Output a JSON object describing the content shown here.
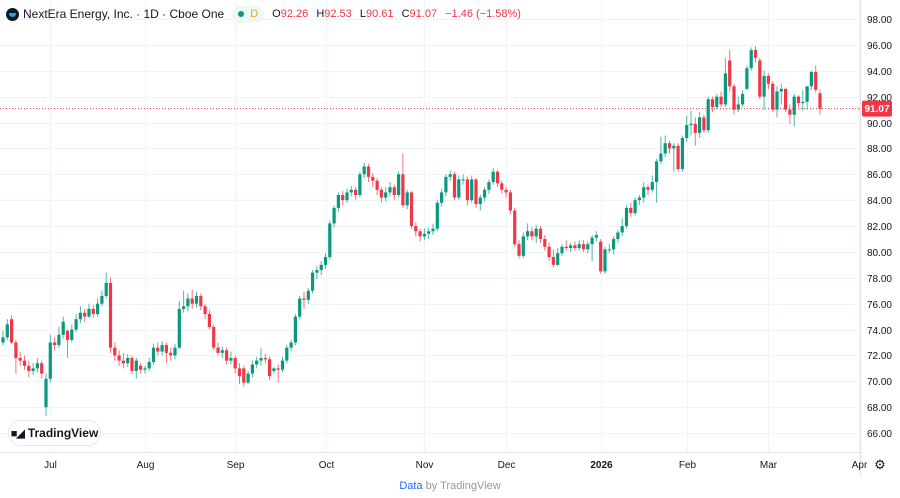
{
  "header": {
    "symbol_title": "NextEra Energy, Inc. · 1D · Cboe One",
    "market_status_letter": "D",
    "ohlc": {
      "o_label": "O",
      "o": "92.26",
      "h_label": "H",
      "h": "92.53",
      "l_label": "L",
      "l": "90.61",
      "c_label": "C",
      "c": "91.07",
      "change": "−1.46 (−1.58%)"
    }
  },
  "watermark": {
    "logo_text": "TradingView"
  },
  "footer": {
    "data_label": "Data",
    "by_label": "by TradingView"
  },
  "icons": {
    "settings": "gear-icon"
  },
  "colors": {
    "up": "#089981",
    "down": "#f23645",
    "grid": "#f0f3fa"
  },
  "chart_data": {
    "type": "candlestick",
    "title": "NextEra Energy, Inc. · 1D · Cboe One",
    "ylim": [
      65,
      99
    ],
    "y_ticks": [
      "98.00",
      "96.00",
      "94.00",
      "92.00",
      "90.00",
      "88.00",
      "86.00",
      "84.00",
      "82.00",
      "80.00",
      "78.00",
      "76.00",
      "74.00",
      "72.00",
      "70.00",
      "68.00",
      "66.00"
    ],
    "x_ticks": [
      {
        "label": "Jul",
        "index": 11
      },
      {
        "label": "Aug",
        "index": 33
      },
      {
        "label": "Sep",
        "index": 54
      },
      {
        "label": "Oct",
        "index": 75
      },
      {
        "label": "Nov",
        "index": 98
      },
      {
        "label": "Dec",
        "index": 117
      },
      {
        "label": "2026",
        "index": 139,
        "bold": true
      },
      {
        "label": "Feb",
        "index": 159
      },
      {
        "label": "Mar",
        "index": 178
      },
      {
        "label": "Apr",
        "index": 199
      }
    ],
    "last_price": 91.07,
    "last_price_label": "91.07",
    "grid": true,
    "candles_ohlc": [
      [
        73.0,
        73.9,
        72.8,
        73.4
      ],
      [
        73.4,
        74.8,
        73.2,
        74.4
      ],
      [
        74.8,
        75.1,
        72.9,
        73.0
      ],
      [
        73.0,
        73.2,
        70.6,
        71.8
      ],
      [
        71.8,
        72.3,
        71.2,
        71.6
      ],
      [
        71.6,
        72.0,
        70.9,
        71.2
      ],
      [
        71.2,
        71.6,
        70.3,
        70.8
      ],
      [
        70.8,
        71.4,
        70.5,
        71.0
      ],
      [
        71.0,
        71.8,
        70.7,
        71.4
      ],
      [
        71.4,
        71.6,
        70.2,
        70.6
      ],
      [
        68.0,
        70.6,
        67.3,
        70.2
      ],
      [
        70.2,
        73.6,
        69.9,
        73.0
      ],
      [
        73.0,
        73.4,
        72.4,
        72.8
      ],
      [
        72.8,
        74.2,
        72.6,
        73.6
      ],
      [
        73.6,
        75.0,
        73.3,
        74.6
      ],
      [
        73.9,
        74.0,
        71.8,
        73.2
      ],
      [
        73.2,
        74.4,
        73.0,
        74.0
      ],
      [
        74.0,
        75.2,
        73.8,
        74.8
      ],
      [
        74.8,
        75.8,
        74.5,
        75.3
      ],
      [
        75.3,
        75.6,
        74.6,
        75.0
      ],
      [
        75.0,
        76.0,
        74.9,
        75.6
      ],
      [
        75.6,
        75.9,
        74.9,
        75.2
      ],
      [
        75.2,
        76.4,
        75.0,
        76.0
      ],
      [
        76.0,
        77.0,
        75.8,
        76.6
      ],
      [
        76.6,
        78.4,
        76.4,
        77.6
      ],
      [
        77.6,
        78.0,
        72.2,
        72.6
      ],
      [
        72.6,
        73.0,
        71.6,
        72.0
      ],
      [
        72.0,
        72.4,
        71.2,
        71.6
      ],
      [
        71.6,
        72.2,
        71.0,
        71.4
      ],
      [
        71.4,
        72.1,
        71.1,
        71.8
      ],
      [
        71.8,
        72.0,
        70.6,
        70.8
      ],
      [
        70.8,
        71.8,
        70.2,
        71.6
      ],
      [
        71.2,
        71.4,
        70.6,
        70.9
      ],
      [
        70.9,
        71.2,
        70.6,
        71.0
      ],
      [
        71.0,
        71.8,
        70.8,
        71.5
      ],
      [
        71.5,
        72.9,
        71.3,
        72.6
      ],
      [
        72.6,
        73.0,
        72.0,
        72.3
      ],
      [
        72.3,
        73.1,
        72.0,
        72.8
      ],
      [
        72.8,
        73.0,
        71.4,
        72.2
      ],
      [
        72.2,
        72.6,
        71.6,
        72.0
      ],
      [
        72.0,
        72.9,
        71.7,
        72.6
      ],
      [
        72.6,
        76.2,
        72.5,
        75.6
      ],
      [
        75.6,
        77.0,
        75.3,
        75.8
      ],
      [
        75.8,
        76.8,
        75.4,
        76.4
      ],
      [
        76.4,
        77.1,
        75.6,
        76.0
      ],
      [
        76.0,
        76.9,
        75.7,
        76.6
      ],
      [
        76.6,
        76.8,
        75.5,
        75.8
      ],
      [
        75.8,
        76.0,
        74.8,
        75.2
      ],
      [
        75.2,
        75.5,
        74.0,
        74.2
      ],
      [
        74.2,
        74.4,
        72.4,
        72.6
      ],
      [
        72.6,
        73.0,
        72.0,
        72.2
      ],
      [
        72.2,
        72.7,
        71.8,
        72.4
      ],
      [
        72.4,
        72.6,
        71.3,
        71.6
      ],
      [
        71.6,
        72.3,
        71.3,
        71.8
      ],
      [
        71.8,
        72.0,
        70.6,
        71.0
      ],
      [
        71.0,
        71.4,
        69.8,
        70.4
      ],
      [
        71.0,
        71.2,
        69.6,
        69.9
      ],
      [
        69.9,
        70.8,
        69.8,
        70.6
      ],
      [
        70.6,
        71.6,
        70.3,
        71.3
      ],
      [
        71.3,
        71.9,
        71.0,
        71.6
      ],
      [
        71.6,
        72.6,
        71.2,
        71.8
      ],
      [
        71.8,
        72.1,
        71.4,
        71.7
      ],
      [
        71.7,
        71.9,
        70.1,
        70.4
      ],
      [
        70.8,
        71.1,
        70.6,
        71.0
      ],
      [
        71.0,
        71.3,
        69.9,
        70.9
      ],
      [
        70.9,
        71.9,
        70.7,
        71.6
      ],
      [
        71.6,
        72.8,
        71.4,
        72.6
      ],
      [
        72.6,
        73.2,
        72.3,
        73.0
      ],
      [
        73.0,
        75.2,
        72.8,
        75.0
      ],
      [
        75.0,
        76.6,
        74.8,
        76.4
      ],
      [
        76.4,
        76.9,
        75.6,
        76.3
      ],
      [
        76.3,
        77.2,
        76.0,
        77.0
      ],
      [
        77.0,
        78.6,
        76.8,
        78.4
      ],
      [
        78.4,
        78.9,
        77.9,
        78.6
      ],
      [
        78.6,
        79.3,
        78.2,
        79.0
      ],
      [
        79.0,
        79.9,
        78.7,
        79.6
      ],
      [
        79.6,
        82.4,
        79.4,
        82.2
      ],
      [
        82.2,
        83.6,
        81.9,
        83.4
      ],
      [
        83.4,
        84.6,
        83.1,
        84.4
      ],
      [
        84.4,
        84.7,
        83.6,
        84.0
      ],
      [
        84.0,
        84.9,
        83.8,
        84.6
      ],
      [
        84.6,
        85.1,
        84.3,
        84.8
      ],
      [
        84.8,
        85.0,
        84.0,
        84.4
      ],
      [
        84.4,
        86.2,
        84.2,
        86.0
      ],
      [
        86.0,
        86.9,
        85.7,
        86.6
      ],
      [
        86.6,
        86.8,
        85.4,
        85.8
      ],
      [
        85.8,
        86.1,
        85.0,
        85.5
      ],
      [
        85.5,
        85.7,
        84.4,
        84.8
      ],
      [
        84.8,
        85.0,
        83.8,
        84.2
      ],
      [
        84.2,
        85.0,
        83.9,
        84.6
      ],
      [
        84.6,
        85.4,
        84.3,
        85.0
      ],
      [
        85.0,
        85.2,
        84.0,
        84.4
      ],
      [
        84.4,
        86.2,
        84.2,
        86.0
      ],
      [
        86.0,
        87.6,
        83.4,
        83.6
      ],
      [
        83.6,
        84.8,
        83.3,
        84.6
      ],
      [
        84.6,
        84.7,
        81.8,
        82.0
      ],
      [
        82.0,
        82.3,
        81.2,
        81.6
      ],
      [
        81.6,
        81.8,
        80.8,
        81.2
      ],
      [
        81.2,
        81.8,
        80.9,
        81.4
      ],
      [
        81.4,
        81.9,
        81.0,
        81.6
      ],
      [
        81.6,
        82.2,
        81.3,
        81.8
      ],
      [
        81.8,
        84.0,
        81.6,
        83.8
      ],
      [
        83.8,
        84.9,
        83.5,
        84.6
      ],
      [
        84.6,
        86.0,
        84.3,
        85.8
      ],
      [
        85.8,
        86.3,
        85.5,
        86.0
      ],
      [
        86.0,
        86.2,
        84.0,
        84.2
      ],
      [
        84.2,
        85.9,
        84.0,
        85.6
      ],
      [
        85.6,
        86.0,
        85.2,
        85.6
      ],
      [
        85.6,
        85.8,
        83.6,
        84.0
      ],
      [
        84.0,
        85.9,
        83.8,
        85.6
      ],
      [
        85.6,
        85.7,
        83.4,
        83.7
      ],
      [
        83.7,
        84.4,
        83.2,
        84.2
      ],
      [
        84.2,
        85.0,
        83.9,
        84.8
      ],
      [
        84.8,
        85.6,
        84.5,
        85.4
      ],
      [
        85.4,
        86.5,
        85.2,
        86.2
      ],
      [
        86.2,
        86.3,
        85.0,
        85.3
      ],
      [
        85.3,
        85.5,
        84.5,
        84.8
      ],
      [
        84.8,
        85.0,
        84.2,
        84.6
      ],
      [
        84.6,
        84.8,
        82.9,
        83.2
      ],
      [
        83.2,
        83.4,
        80.4,
        80.6
      ],
      [
        80.6,
        80.9,
        79.5,
        79.7
      ],
      [
        79.7,
        81.5,
        79.5,
        81.2
      ],
      [
        81.2,
        82.2,
        80.9,
        81.6
      ],
      [
        81.6,
        81.9,
        80.9,
        81.2
      ],
      [
        81.2,
        82.1,
        80.7,
        81.8
      ],
      [
        81.8,
        82.0,
        80.7,
        81.0
      ],
      [
        81.0,
        81.3,
        80.1,
        80.4
      ],
      [
        80.4,
        80.7,
        79.3,
        79.6
      ],
      [
        79.6,
        80.2,
        78.8,
        79.0
      ],
      [
        79.0,
        80.3,
        78.9,
        79.9
      ],
      [
        79.9,
        80.6,
        79.7,
        80.4
      ],
      [
        80.4,
        80.9,
        80.1,
        80.3
      ],
      [
        80.3,
        80.7,
        80.0,
        80.5
      ],
      [
        80.5,
        80.8,
        80.1,
        80.3
      ],
      [
        80.3,
        80.9,
        80.1,
        80.6
      ],
      [
        80.6,
        80.9,
        80.0,
        80.2
      ],
      [
        80.2,
        80.8,
        79.9,
        80.6
      ],
      [
        80.6,
        81.3,
        79.3,
        81.1
      ],
      [
        81.1,
        81.6,
        80.8,
        81.3
      ],
      [
        80.8,
        81.0,
        78.3,
        78.5
      ],
      [
        78.5,
        80.4,
        78.3,
        80.2
      ],
      [
        80.2,
        80.6,
        79.9,
        80.2
      ],
      [
        80.2,
        81.2,
        79.8,
        81.0
      ],
      [
        81.0,
        81.7,
        80.7,
        81.5
      ],
      [
        81.5,
        82.6,
        81.2,
        82.0
      ],
      [
        82.0,
        83.6,
        81.8,
        83.4
      ],
      [
        83.4,
        83.8,
        82.7,
        83.0
      ],
      [
        83.0,
        84.2,
        82.8,
        84.0
      ],
      [
        84.0,
        84.4,
        83.6,
        84.2
      ],
      [
        84.2,
        85.4,
        83.8,
        85.0
      ],
      [
        85.0,
        85.2,
        84.4,
        84.8
      ],
      [
        84.8,
        85.9,
        84.6,
        85.4
      ],
      [
        85.4,
        87.2,
        83.8,
        87.0
      ],
      [
        87.0,
        88.9,
        86.8,
        87.6
      ],
      [
        87.6,
        89.0,
        87.3,
        88.4
      ],
      [
        88.4,
        88.6,
        87.6,
        88.0
      ],
      [
        88.0,
        88.4,
        86.2,
        88.2
      ],
      [
        88.2,
        88.4,
        86.2,
        86.4
      ],
      [
        86.4,
        89.0,
        86.2,
        88.8
      ],
      [
        88.8,
        90.5,
        88.5,
        89.8
      ],
      [
        89.8,
        90.9,
        89.0,
        89.9
      ],
      [
        89.9,
        90.4,
        88.2,
        89.2
      ],
      [
        89.2,
        90.8,
        88.8,
        90.4
      ],
      [
        90.4,
        90.6,
        89.2,
        89.4
      ],
      [
        89.4,
        92.0,
        89.2,
        91.8
      ],
      [
        91.8,
        92.0,
        90.8,
        91.2
      ],
      [
        91.2,
        92.2,
        91.0,
        92.0
      ],
      [
        92.0,
        92.4,
        91.2,
        91.4
      ],
      [
        91.4,
        95.0,
        91.2,
        93.8
      ],
      [
        94.8,
        95.6,
        92.4,
        92.8
      ],
      [
        92.8,
        93.0,
        90.6,
        91.0
      ],
      [
        91.0,
        92.0,
        90.8,
        91.4
      ],
      [
        91.4,
        92.5,
        91.2,
        92.2
      ],
      [
        92.6,
        94.4,
        92.5,
        94.2
      ],
      [
        94.2,
        95.8,
        94.0,
        95.6
      ],
      [
        95.6,
        95.9,
        94.6,
        95.0
      ],
      [
        94.8,
        95.0,
        91.8,
        92.0
      ],
      [
        92.0,
        94.0,
        91.0,
        93.6
      ],
      [
        93.6,
        93.8,
        92.6,
        93.0
      ],
      [
        93.0,
        93.2,
        90.8,
        91.0
      ],
      [
        91.0,
        92.8,
        90.4,
        92.4
      ],
      [
        92.4,
        93.0,
        91.4,
        92.6
      ],
      [
        92.6,
        92.7,
        90.8,
        91.0
      ],
      [
        91.0,
        91.4,
        89.9,
        90.6
      ],
      [
        90.6,
        92.2,
        89.7,
        92.0
      ],
      [
        92.0,
        92.1,
        91.2,
        91.5
      ],
      [
        91.5,
        92.5,
        90.9,
        91.6
      ],
      [
        91.6,
        92.8,
        91.0,
        92.8
      ],
      [
        92.8,
        94.0,
        92.5,
        93.9
      ],
      [
        93.9,
        94.4,
        92.3,
        92.53
      ],
      [
        92.26,
        92.53,
        90.61,
        91.07
      ]
    ]
  }
}
